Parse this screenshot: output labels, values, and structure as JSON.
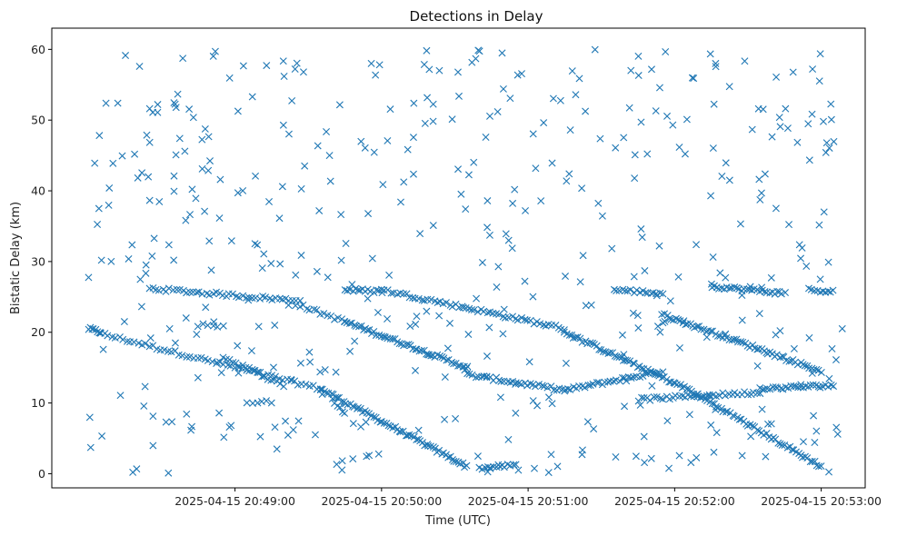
{
  "chart_data": {
    "type": "scatter",
    "title": "Detections in Delay",
    "xlabel": "Time (UTC)",
    "ylabel": "Bistatic Delay (km)",
    "marker": "x",
    "color": "#1f77b4",
    "grid": false,
    "xlim": [
      "2025-04-15 20:47:45",
      "2025-04-15 20:53:18"
    ],
    "ylim": [
      -2,
      63
    ],
    "x_ticks": [
      "2025-04-15 20:49:00",
      "2025-04-15 20:50:00",
      "2025-04-15 20:51:00",
      "2025-04-15 20:52:00",
      "2025-04-15 20:53:00"
    ],
    "y_ticks": [
      0,
      10,
      20,
      30,
      40,
      50,
      60
    ],
    "tracks": [
      {
        "from": [
          "2025-04-15 20:48:00",
          20.5
        ],
        "to": [
          "2025-04-15 20:48:05",
          20.0
        ],
        "count": 8
      },
      {
        "from": [
          "2025-04-15 20:48:05",
          19.8
        ],
        "to": [
          "2025-04-15 20:49:35",
          12.0
        ],
        "count": 60
      },
      {
        "from": [
          "2025-04-15 20:49:35",
          12.0
        ],
        "to": [
          "2025-04-15 20:50:35",
          1.0
        ],
        "count": 70
      },
      {
        "from": [
          "2025-04-15 20:50:40",
          0.8
        ],
        "to": [
          "2025-04-15 20:50:55",
          1.2
        ],
        "count": 14
      },
      {
        "from": [
          "2025-04-15 20:48:25",
          26.2
        ],
        "to": [
          "2025-04-15 20:49:25",
          24.5
        ],
        "count": 45
      },
      {
        "from": [
          "2025-04-15 20:49:25",
          24.0
        ],
        "to": [
          "2025-04-15 20:49:45",
          21.5
        ],
        "count": 15
      },
      {
        "from": [
          "2025-04-15 20:49:45",
          21.5
        ],
        "to": [
          "2025-04-15 20:50:35",
          15.0
        ],
        "count": 55
      },
      {
        "from": [
          "2025-04-15 20:50:35",
          14.0
        ],
        "to": [
          "2025-04-15 20:51:15",
          11.8
        ],
        "count": 35
      },
      {
        "from": [
          "2025-04-15 20:51:15",
          11.8
        ],
        "to": [
          "2025-04-15 20:51:55",
          14.5
        ],
        "count": 35
      },
      {
        "from": [
          "2025-04-15 20:48:55",
          16.5
        ],
        "to": [
          "2025-04-15 20:49:20",
          12.5
        ],
        "count": 20
      },
      {
        "from": [
          "2025-04-15 20:49:40",
          10.5
        ],
        "to": [
          "2025-04-15 20:49:45",
          8.5
        ],
        "count": 6
      },
      {
        "from": [
          "2025-04-15 20:49:45",
          26.0
        ],
        "to": [
          "2025-04-15 20:50:00",
          25.8
        ],
        "count": 15
      },
      {
        "from": [
          "2025-04-15 20:50:00",
          26.0
        ],
        "to": [
          "2025-04-15 20:51:15",
          20.5
        ],
        "count": 60
      },
      {
        "from": [
          "2025-04-15 20:51:15",
          20.0
        ],
        "to": [
          "2025-04-15 20:52:05",
          12.0
        ],
        "count": 55
      },
      {
        "from": [
          "2025-04-15 20:52:05",
          12.0
        ],
        "to": [
          "2025-04-15 20:53:00",
          1.0
        ],
        "count": 60
      },
      {
        "from": [
          "2025-04-15 20:51:35",
          26.0
        ],
        "to": [
          "2025-04-15 20:51:55",
          25.5
        ],
        "count": 18
      },
      {
        "from": [
          "2025-04-15 20:51:55",
          22.5
        ],
        "to": [
          "2025-04-15 20:53:00",
          14.5
        ],
        "count": 70
      },
      {
        "from": [
          "2025-04-15 20:51:45",
          10.5
        ],
        "to": [
          "2025-04-15 20:52:35",
          11.5
        ],
        "count": 40
      },
      {
        "from": [
          "2025-04-15 20:52:15",
          26.5
        ],
        "to": [
          "2025-04-15 20:52:45",
          25.5
        ],
        "count": 30
      },
      {
        "from": [
          "2025-04-15 20:52:35",
          12.0
        ],
        "to": [
          "2025-04-15 20:53:05",
          12.5
        ],
        "count": 30
      },
      {
        "from": [
          "2025-04-15 20:52:55",
          26.0
        ],
        "to": [
          "2025-04-15 20:53:05",
          25.8
        ],
        "count": 10
      },
      {
        "from": [
          "2025-04-15 20:49:05",
          10.0
        ],
        "to": [
          "2025-04-15 20:49:15",
          10.2
        ],
        "count": 6
      },
      {
        "from": [
          "2025-04-15 20:48:45",
          21.0
        ],
        "to": [
          "2025-04-15 20:48:55",
          21.0
        ],
        "count": 6
      }
    ],
    "scattered_points": {
      "count": 460,
      "x_range": [
        "2025-04-15 20:48:00",
        "2025-04-15 20:53:10"
      ],
      "y_range": [
        0,
        60
      ]
    }
  }
}
